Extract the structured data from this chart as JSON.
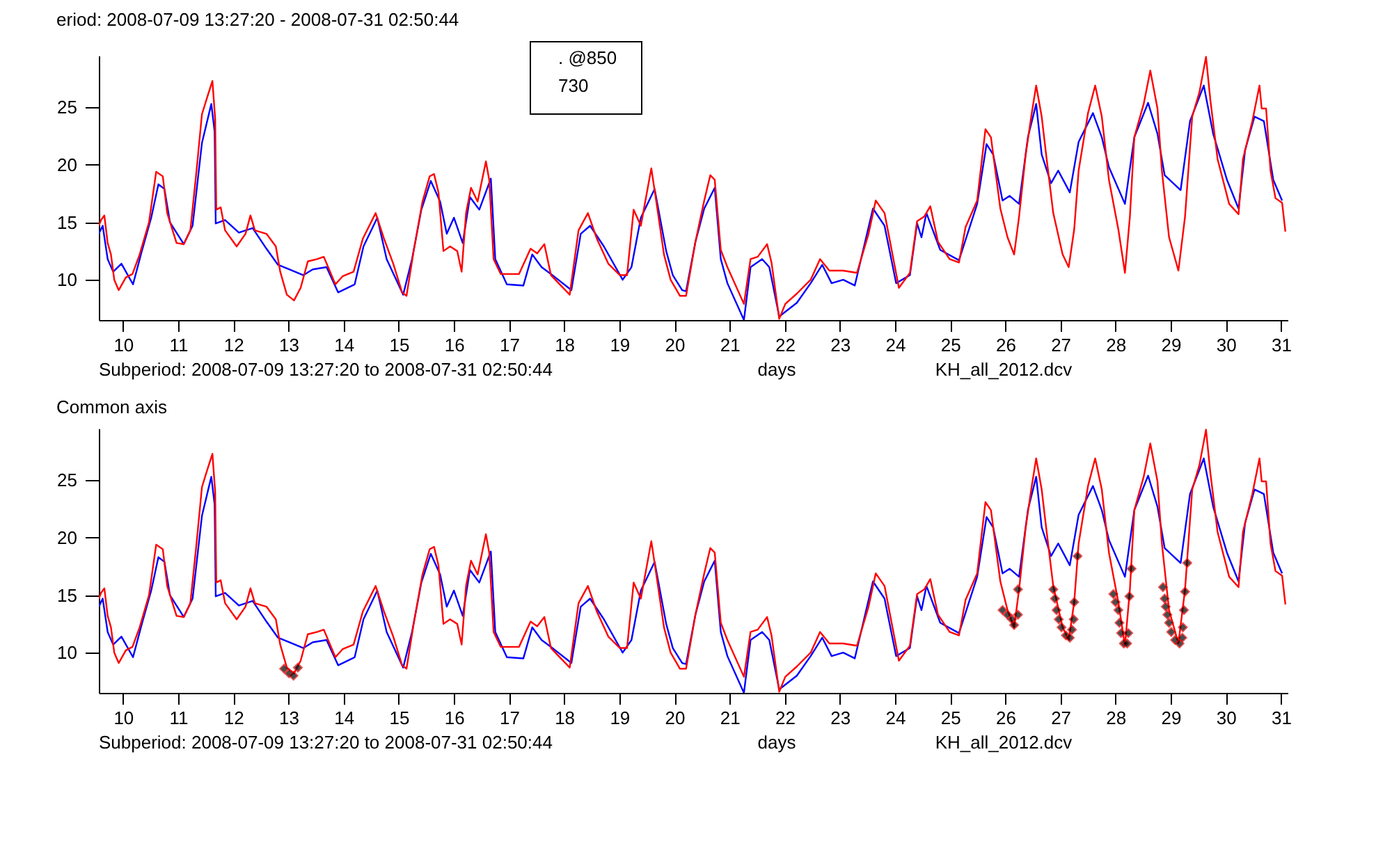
{
  "chart_data": [
    {
      "type": "line",
      "title": "eriod: 2008-07-09 13:27:20 - 2008-07-31 02:50:44",
      "xlabel": "days",
      "annotations": [
        "Subperiod: 2008-07-09 13:27:20 to 2008-07-31 02:50:44",
        "KH_all_2012.dcv",
        ". @850",
        "730"
      ],
      "xlim": [
        9.56,
        31.12
      ],
      "ylim": [
        6.5,
        29.5
      ],
      "xticks": [
        10,
        11,
        12,
        13,
        14,
        15,
        16,
        17,
        18,
        19,
        20,
        21,
        22,
        23,
        24,
        25,
        26,
        27,
        28,
        29,
        30,
        31
      ],
      "yticks": [
        10,
        15,
        20,
        25
      ],
      "series": [
        {
          "color": "#0000ff",
          "x": [
            9.56,
            9.63,
            9.72,
            9.82,
            9.97,
            10.18,
            10.34,
            10.51,
            10.64,
            10.75,
            10.85,
            11.1,
            11.26,
            11.43,
            11.6,
            11.66,
            11.68,
            11.85,
            12.1,
            12.35,
            12.6,
            12.81,
            13.02,
            13.27,
            13.44,
            13.69,
            13.9,
            14.2,
            14.36,
            14.61,
            14.78,
            15.08,
            15.24,
            15.41,
            15.58,
            15.75,
            15.87,
            16,
            16.16,
            16.29,
            16.46,
            16.67,
            16.75,
            16.96,
            17.26,
            17.42,
            17.59,
            17.76,
            18.13,
            18.3,
            18.47,
            18.72,
            19.06,
            19.22,
            19.39,
            19.64,
            19.85,
            19.97,
            20.14,
            20.21,
            20.38,
            20.54,
            20.73,
            20.84,
            20.96,
            21.26,
            21.38,
            21.59,
            21.72,
            21.9,
            22.22,
            22.47,
            22.68,
            22.85,
            23.06,
            23.27,
            23.6,
            23.81,
            24.02,
            24.27,
            24.4,
            24.48,
            24.57,
            24.82,
            25.16,
            25.49,
            25.66,
            25.78,
            25.95,
            26.08,
            26.25,
            26.41,
            26.56,
            26.66,
            26.83,
            26.96,
            27.17,
            27.33,
            27.59,
            27.75,
            27.88,
            28.17,
            28.34,
            28.59,
            28.76,
            28.89,
            29.18,
            29.35,
            29.6,
            29.77,
            30.02,
            30.23,
            30.35,
            30.52,
            30.69,
            30.86,
            31.02
          ],
          "values": [
            14,
            14.7,
            11.8,
            10.7,
            11.4,
            9.6,
            12.5,
            15.4,
            18.3,
            17.9,
            15,
            13.1,
            14.7,
            21.9,
            25.3,
            22.9,
            14.9,
            15.2,
            14.1,
            14.5,
            12.7,
            11.3,
            10.9,
            10.4,
            10.9,
            11.1,
            8.9,
            9.6,
            12.9,
            15.4,
            11.8,
            8.7,
            11.8,
            16.1,
            18.6,
            16.8,
            14,
            15.4,
            13.2,
            17.2,
            16.1,
            18.8,
            11.8,
            9.6,
            9.5,
            12.2,
            11.1,
            10.5,
            9.1,
            14,
            14.7,
            12.9,
            10,
            11.1,
            15.4,
            17.9,
            12.5,
            10.4,
            9.1,
            9,
            13.3,
            16.2,
            18,
            11.8,
            9.7,
            6.5,
            11.1,
            11.8,
            11.1,
            6.8,
            8,
            9.7,
            11.3,
            9.7,
            10,
            9.5,
            16.2,
            14.7,
            9.7,
            10.4,
            14.9,
            13.7,
            15.8,
            12.6,
            11.7,
            16.6,
            21.8,
            20.9,
            16.9,
            17.3,
            16.6,
            22.4,
            25.3,
            20.9,
            18.4,
            19.5,
            17.6,
            22,
            24.5,
            22.4,
            19.8,
            16.6,
            22.4,
            25.4,
            22.7,
            19.1,
            17.8,
            23.8,
            26.9,
            22.7,
            18.7,
            16.2,
            21.3,
            24.2,
            23.8,
            18.7,
            16.9
          ]
        },
        {
          "color": "#ff0000",
          "x": [
            9.56,
            9.6,
            9.66,
            9.72,
            9.78,
            9.84,
            9.92,
            10.05,
            10.17,
            10.3,
            10.47,
            10.6,
            10.72,
            10.8,
            10.97,
            11.1,
            11.22,
            11.33,
            11.43,
            11.52,
            11.62,
            11.67,
            11.69,
            11.77,
            11.85,
            12.06,
            12.22,
            12.31,
            12.39,
            12.6,
            12.77,
            12.85,
            12.97,
            13.1,
            13.22,
            13.35,
            13.52,
            13.64,
            13.85,
            13.98,
            14.18,
            14.35,
            14.58,
            14.73,
            14.9,
            15.06,
            15.14,
            15.27,
            15.43,
            15.56,
            15.64,
            15.72,
            15.81,
            15.93,
            16.06,
            16.14,
            16.22,
            16.31,
            16.43,
            16.58,
            16.64,
            16.72,
            16.85,
            17.18,
            17.39,
            17.51,
            17.64,
            17.76,
            18.1,
            18.26,
            18.43,
            18.59,
            18.8,
            19.01,
            19.14,
            19.26,
            19.39,
            19.47,
            19.58,
            19.68,
            19.81,
            19.93,
            20.1,
            20.21,
            20.38,
            20.54,
            20.65,
            20.73,
            20.84,
            20.96,
            21.26,
            21.38,
            21.51,
            21.68,
            21.76,
            21.9,
            22.01,
            22.22,
            22.47,
            22.64,
            22.81,
            23.06,
            23.31,
            23.52,
            23.65,
            23.81,
            24.07,
            24.27,
            24.4,
            24.53,
            24.64,
            24.78,
            24.99,
            25.16,
            25.28,
            25.49,
            25.64,
            25.74,
            25.91,
            26.04,
            26.16,
            26.25,
            26.37,
            26.48,
            26.56,
            26.66,
            26.75,
            26.87,
            27.04,
            27.15,
            27.25,
            27.33,
            27.5,
            27.63,
            27.75,
            27.88,
            28.05,
            28.17,
            28.26,
            28.34,
            28.51,
            28.63,
            28.76,
            28.84,
            28.97,
            29.14,
            29.26,
            29.39,
            29.52,
            29.64,
            29.72,
            29.85,
            30.06,
            30.23,
            30.31,
            30.48,
            30.61,
            30.65,
            30.73,
            30.81,
            30.9,
            31.02,
            31.08
          ],
          "values": [
            14.7,
            15.2,
            15.6,
            13.2,
            12.2,
            10,
            9.1,
            10.2,
            10.5,
            12.2,
            15,
            19.4,
            19,
            15.8,
            13.2,
            13.1,
            14.3,
            19.4,
            24.4,
            25.8,
            27.3,
            24,
            16.1,
            16.3,
            14.3,
            12.9,
            14,
            15.6,
            14.3,
            14,
            12.9,
            10.7,
            8.7,
            8.2,
            9.3,
            11.6,
            11.8,
            12,
            9.6,
            10.3,
            10.7,
            13.6,
            15.8,
            13.6,
            11.4,
            8.9,
            8.6,
            12.5,
            16.8,
            19,
            19.2,
            17.6,
            12.5,
            12.9,
            12.5,
            10.7,
            15.8,
            18,
            16.8,
            20.3,
            18.7,
            11.8,
            10.5,
            10.5,
            12.7,
            12.3,
            13.1,
            10.4,
            8.7,
            14.3,
            15.8,
            13.6,
            11.4,
            10.4,
            10.4,
            16.1,
            14.7,
            16.8,
            19.7,
            16.5,
            12.2,
            10,
            8.6,
            8.6,
            13.3,
            16.9,
            19.1,
            18.7,
            12.6,
            11.1,
            7.9,
            11.8,
            12,
            13.1,
            11.5,
            6.6,
            7.9,
            8.8,
            10,
            11.8,
            10.8,
            10.8,
            10.6,
            14,
            16.9,
            15.8,
            9.3,
            10.6,
            15.1,
            15.5,
            16.4,
            13.3,
            11.8,
            11.5,
            14.6,
            16.9,
            23.1,
            22.4,
            16.2,
            13.7,
            12.2,
            15.5,
            20.9,
            24.5,
            26.9,
            24.2,
            20.5,
            15.8,
            12.2,
            11.1,
            14.4,
            19.5,
            24.5,
            26.9,
            24.2,
            18.7,
            14.4,
            10.6,
            15.5,
            22.4,
            25.3,
            28.2,
            24.9,
            19.5,
            13.7,
            10.8,
            15.5,
            24.2,
            26.3,
            29.4,
            25.6,
            20.5,
            16.6,
            15.7,
            20.5,
            23.8,
            26.9,
            24.9,
            24.9,
            19.5,
            17.1,
            16.7,
            14.2
          ]
        }
      ]
    },
    {
      "type": "line",
      "title": "Common axis",
      "xlabel": "days",
      "annotations": [
        "Subperiod: 2008-07-09 13:27:20 to 2008-07-31 02:50:44",
        "KH_all_2012.dcv"
      ],
      "xlim": [
        9.56,
        31.12
      ],
      "ylim": [
        6.5,
        29.5
      ],
      "xticks": [
        10,
        11,
        12,
        13,
        14,
        15,
        16,
        17,
        18,
        19,
        20,
        21,
        22,
        23,
        24,
        25,
        26,
        27,
        28,
        29,
        30,
        31
      ],
      "yticks": [
        10,
        15,
        20,
        25
      ],
      "series": [
        {
          "color": "#0000ff",
          "x": [
            9.56,
            9.63,
            9.72,
            9.82,
            9.97,
            10.18,
            10.34,
            10.51,
            10.64,
            10.75,
            10.85,
            11.1,
            11.26,
            11.43,
            11.6,
            11.66,
            11.68,
            11.85,
            12.1,
            12.35,
            12.6,
            12.81,
            13.02,
            13.27,
            13.44,
            13.69,
            13.9,
            14.2,
            14.36,
            14.61,
            14.78,
            15.08,
            15.24,
            15.41,
            15.58,
            15.75,
            15.87,
            16,
            16.16,
            16.29,
            16.46,
            16.67,
            16.75,
            16.96,
            17.26,
            17.42,
            17.59,
            17.76,
            18.13,
            18.3,
            18.47,
            18.72,
            19.06,
            19.22,
            19.39,
            19.64,
            19.85,
            19.97,
            20.14,
            20.21,
            20.38,
            20.54,
            20.73,
            20.84,
            20.96,
            21.26,
            21.38,
            21.59,
            21.72,
            21.9,
            22.22,
            22.47,
            22.68,
            22.85,
            23.06,
            23.27,
            23.6,
            23.81,
            24.02,
            24.27,
            24.4,
            24.48,
            24.57,
            24.82,
            25.16,
            25.49,
            25.66,
            25.78,
            25.95,
            26.08,
            26.25,
            26.41,
            26.56,
            26.66,
            26.83,
            26.96,
            27.17,
            27.33,
            27.59,
            27.75,
            27.88,
            28.17,
            28.34,
            28.59,
            28.76,
            28.89,
            29.18,
            29.35,
            29.6,
            29.77,
            30.02,
            30.23,
            30.35,
            30.52,
            30.69,
            30.86,
            31.02
          ],
          "values": [
            14,
            14.7,
            11.8,
            10.7,
            11.4,
            9.6,
            12.5,
            15.4,
            18.3,
            17.9,
            15,
            13.1,
            14.7,
            21.9,
            25.3,
            22.9,
            14.9,
            15.2,
            14.1,
            14.5,
            12.7,
            11.3,
            10.9,
            10.4,
            10.9,
            11.1,
            8.9,
            9.6,
            12.9,
            15.4,
            11.8,
            8.7,
            11.8,
            16.1,
            18.6,
            16.8,
            14,
            15.4,
            13.2,
            17.2,
            16.1,
            18.8,
            11.8,
            9.6,
            9.5,
            12.2,
            11.1,
            10.5,
            9.1,
            14,
            14.7,
            12.9,
            10,
            11.1,
            15.4,
            17.9,
            12.5,
            10.4,
            9.1,
            9,
            13.3,
            16.2,
            18,
            11.8,
            9.7,
            6.5,
            11.1,
            11.8,
            11.1,
            6.8,
            8,
            9.7,
            11.3,
            9.7,
            10,
            9.5,
            16.2,
            14.7,
            9.7,
            10.4,
            14.9,
            13.7,
            15.8,
            12.6,
            11.7,
            16.6,
            21.8,
            20.9,
            16.9,
            17.3,
            16.6,
            22.4,
            25.3,
            20.9,
            18.4,
            19.5,
            17.6,
            22,
            24.5,
            22.4,
            19.8,
            16.6,
            22.4,
            25.4,
            22.7,
            19.1,
            17.8,
            23.8,
            26.9,
            22.7,
            18.7,
            16.2,
            21.3,
            24.2,
            23.8,
            18.7,
            16.9
          ]
        },
        {
          "color": "#ff0000",
          "x": [
            9.56,
            9.6,
            9.66,
            9.72,
            9.78,
            9.84,
            9.92,
            10.05,
            10.17,
            10.3,
            10.47,
            10.6,
            10.72,
            10.8,
            10.97,
            11.1,
            11.22,
            11.33,
            11.43,
            11.52,
            11.62,
            11.67,
            11.69,
            11.77,
            11.85,
            12.06,
            12.22,
            12.31,
            12.39,
            12.6,
            12.77,
            12.85,
            12.97,
            13.1,
            13.22,
            13.35,
            13.52,
            13.64,
            13.85,
            13.98,
            14.18,
            14.35,
            14.58,
            14.73,
            14.9,
            15.06,
            15.14,
            15.27,
            15.43,
            15.56,
            15.64,
            15.72,
            15.81,
            15.93,
            16.06,
            16.14,
            16.22,
            16.31,
            16.43,
            16.58,
            16.64,
            16.72,
            16.85,
            17.18,
            17.39,
            17.51,
            17.64,
            17.76,
            18.1,
            18.26,
            18.43,
            18.59,
            18.8,
            19.01,
            19.14,
            19.26,
            19.39,
            19.47,
            19.58,
            19.68,
            19.81,
            19.93,
            20.1,
            20.21,
            20.38,
            20.54,
            20.65,
            20.73,
            20.84,
            20.96,
            21.26,
            21.38,
            21.51,
            21.68,
            21.76,
            21.9,
            22.01,
            22.22,
            22.47,
            22.64,
            22.81,
            23.06,
            23.31,
            23.52,
            23.65,
            23.81,
            24.07,
            24.27,
            24.4,
            24.53,
            24.64,
            24.78,
            24.99,
            25.16,
            25.28,
            25.49,
            25.64,
            25.74,
            25.91,
            26.04,
            26.16,
            26.25,
            26.37,
            26.48,
            26.56,
            26.66,
            26.75,
            26.87,
            27.04,
            27.15,
            27.25,
            27.33,
            27.5,
            27.63,
            27.75,
            27.88,
            28.05,
            28.17,
            28.26,
            28.34,
            28.51,
            28.63,
            28.76,
            28.84,
            28.97,
            29.14,
            29.26,
            29.39,
            29.52,
            29.64,
            29.72,
            29.85,
            30.06,
            30.23,
            30.31,
            30.48,
            30.61,
            30.65,
            30.73,
            30.81,
            30.9,
            31.02,
            31.08
          ],
          "values": [
            14.7,
            15.2,
            15.6,
            13.2,
            12.2,
            10,
            9.1,
            10.2,
            10.5,
            12.2,
            15,
            19.4,
            19,
            15.8,
            13.2,
            13.1,
            14.3,
            19.4,
            24.4,
            25.8,
            27.3,
            24,
            16.1,
            16.3,
            14.3,
            12.9,
            14,
            15.6,
            14.3,
            14,
            12.9,
            10.7,
            8.7,
            8.2,
            9.3,
            11.6,
            11.8,
            12,
            9.6,
            10.3,
            10.7,
            13.6,
            15.8,
            13.6,
            11.4,
            8.9,
            8.6,
            12.5,
            16.8,
            19,
            19.2,
            17.6,
            12.5,
            12.9,
            12.5,
            10.7,
            15.8,
            18,
            16.8,
            20.3,
            18.7,
            11.8,
            10.5,
            10.5,
            12.7,
            12.3,
            13.1,
            10.4,
            8.7,
            14.3,
            15.8,
            13.6,
            11.4,
            10.4,
            10.4,
            16.1,
            14.7,
            16.8,
            19.7,
            16.5,
            12.2,
            10,
            8.6,
            8.6,
            13.3,
            16.9,
            19.1,
            18.7,
            12.6,
            11.1,
            7.9,
            11.8,
            12,
            13.1,
            11.5,
            6.6,
            7.9,
            8.8,
            10,
            11.8,
            10.8,
            10.8,
            10.6,
            14,
            16.9,
            15.8,
            9.3,
            10.6,
            15.1,
            15.5,
            16.4,
            13.3,
            11.8,
            11.5,
            14.6,
            16.9,
            23.1,
            22.4,
            16.2,
            13.7,
            12.2,
            15.5,
            20.9,
            24.5,
            26.9,
            24.2,
            20.5,
            15.8,
            12.2,
            11.1,
            14.4,
            19.5,
            24.5,
            26.9,
            24.2,
            18.7,
            14.4,
            10.6,
            15.5,
            22.4,
            25.3,
            28.2,
            24.9,
            19.5,
            13.7,
            10.8,
            15.5,
            24.2,
            26.3,
            29.4,
            25.6,
            20.5,
            16.6,
            15.7,
            20.5,
            23.8,
            26.9,
            24.9,
            24.9,
            19.5,
            17.1,
            16.7,
            14.2
          ]
        },
        {
          "type": "scatter",
          "marker": "diamond",
          "color": "#000000",
          "x": [
            12.92,
            13.01,
            13.09,
            13.17,
            25.95,
            26.04,
            26.12,
            26.16,
            26.23,
            26.23,
            26.87,
            26.9,
            26.93,
            26.97,
            27.02,
            27.1,
            27.17,
            27.21,
            27.24,
            27.25,
            27.31,
            27.96,
            28,
            28.05,
            28.07,
            28.1,
            28.15,
            28.21,
            28.23,
            28.25,
            28.29,
            28.86,
            28.89,
            28.91,
            28.94,
            28.97,
            29.01,
            29.08,
            29.16,
            29.21,
            29.22,
            29.24,
            29.26,
            29.3
          ],
          "values": [
            8.6,
            8.2,
            8,
            8.7,
            13.7,
            13.3,
            12.9,
            12.4,
            13.3,
            15.5,
            15.5,
            14.7,
            13.7,
            12.9,
            12.2,
            11.5,
            11.3,
            12,
            12.9,
            14.4,
            18.4,
            15.1,
            14.4,
            13.7,
            12.6,
            11.7,
            10.8,
            10.8,
            11.7,
            14.9,
            17.3,
            15.7,
            14.7,
            14,
            13.3,
            12.6,
            11.8,
            11.1,
            10.8,
            11.3,
            12.2,
            13.7,
            15.3,
            17.8
          ]
        }
      ]
    }
  ]
}
